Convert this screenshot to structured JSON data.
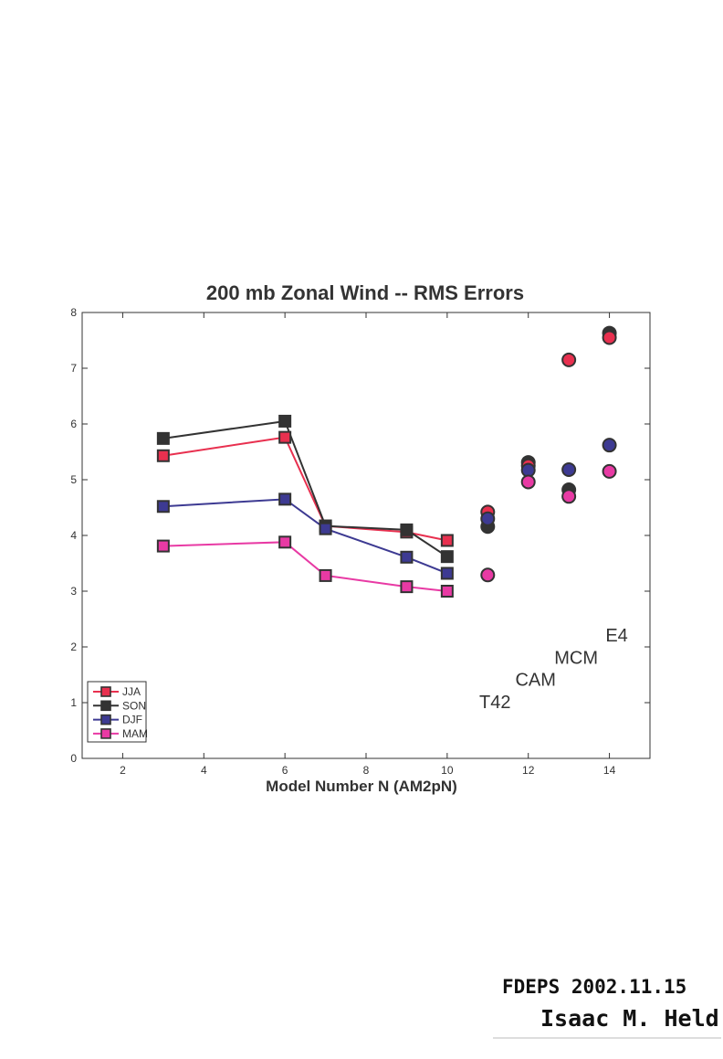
{
  "chart_data": {
    "type": "line",
    "title": "200 mb Zonal Wind -- RMS Errors",
    "xlabel": "Model Number N  (AM2pN)",
    "ylabel": "",
    "xlim": [
      1,
      15
    ],
    "ylim": [
      0,
      8
    ],
    "xticks": [
      2,
      4,
      6,
      8,
      10,
      12,
      14
    ],
    "yticks": [
      0,
      1,
      2,
      3,
      4,
      5,
      6,
      7,
      8
    ],
    "grid": false,
    "legend": "bottom-left",
    "colors": {
      "JJA": "#e8304f",
      "SON": "#333333",
      "DJF": "#3d3a92",
      "MAM": "#e83aa4"
    },
    "series": [
      {
        "name": "JJA",
        "x": [
          3,
          6,
          7,
          9,
          10
        ],
        "y": [
          5.43,
          5.76,
          4.17,
          4.06,
          3.91
        ]
      },
      {
        "name": "SON",
        "x": [
          3,
          6,
          7,
          9,
          10
        ],
        "y": [
          5.74,
          6.05,
          4.17,
          4.1,
          3.62
        ]
      },
      {
        "name": "DJF",
        "x": [
          3,
          6,
          7,
          9,
          10
        ],
        "y": [
          4.52,
          4.65,
          4.12,
          3.61,
          3.32
        ]
      },
      {
        "name": "MAM",
        "x": [
          3,
          6,
          7,
          9,
          10
        ],
        "y": [
          3.81,
          3.88,
          3.28,
          3.08,
          3.0
        ]
      }
    ],
    "other_models": [
      {
        "label": "T42",
        "x": 11,
        "label_level": 0.9,
        "values": {
          "JJA": 4.42,
          "SON": 4.16,
          "DJF": 4.3,
          "MAM": 3.29
        }
      },
      {
        "label": "CAM",
        "x": 12,
        "label_level": 1.3,
        "values": {
          "JJA": 5.25,
          "SON": 5.31,
          "DJF": 5.17,
          "MAM": 4.96
        }
      },
      {
        "label": "MCM",
        "x": 13,
        "label_level": 1.7,
        "values": {
          "JJA": 7.15,
          "SON": 4.82,
          "DJF": 5.18,
          "MAM": 4.7
        }
      },
      {
        "label": "E4",
        "x": 14,
        "label_level": 2.1,
        "values": {
          "JJA": 7.55,
          "SON": 7.63,
          "DJF": 5.62,
          "MAM": 5.15
        }
      }
    ]
  },
  "annotation": {
    "line1": "FDEPS 2002.11.15",
    "line2": "Isaac M. Held"
  }
}
